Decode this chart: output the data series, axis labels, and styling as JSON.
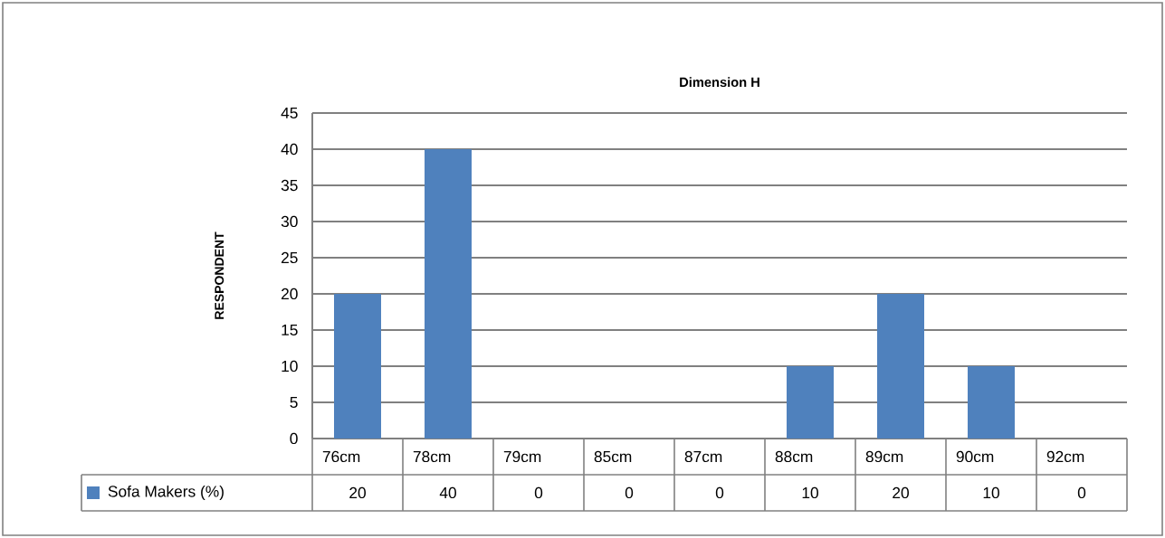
{
  "chart_data": {
    "type": "bar",
    "title": "Dimension H",
    "ylabel": "RESPONDENT",
    "categories": [
      "76cm",
      "78cm",
      "79cm",
      "85cm",
      "87cm",
      "88cm",
      "89cm",
      "90cm",
      "92cm"
    ],
    "series": [
      {
        "name": "Sofa Makers (%)",
        "color": "#4f81bd",
        "values": [
          20,
          40,
          0,
          0,
          0,
          10,
          20,
          10,
          0
        ]
      }
    ],
    "ylim": [
      0,
      45
    ],
    "yticks": [
      0,
      5,
      10,
      15,
      20,
      25,
      30,
      35,
      40,
      45
    ],
    "grid": "y",
    "legend": "bottom left",
    "data_labels": true
  }
}
